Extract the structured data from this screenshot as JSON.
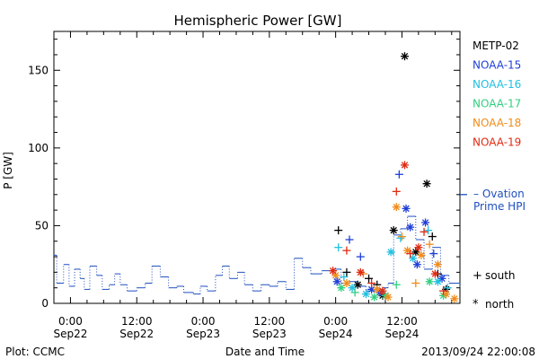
{
  "chart_data": {
    "type": "scatter",
    "title": "Hemispheric Power [GW]",
    "xlabel": "Date and Time",
    "ylabel": "P [GW]",
    "xlim": [
      "2013-09-21 21:00",
      "2013-09-24 22:30"
    ],
    "ylim": [
      0,
      175
    ],
    "yticks": [
      0,
      50,
      100,
      150
    ],
    "xticks": [
      {
        "t": "2013-09-22 00:00",
        "l1": "0:00",
        "l2": "Sep22"
      },
      {
        "t": "2013-09-22 12:00",
        "l1": "12:00",
        "l2": "Sep22"
      },
      {
        "t": "2013-09-23 00:00",
        "l1": "0:00",
        "l2": "Sep23"
      },
      {
        "t": "2013-09-23 12:00",
        "l1": "12:00",
        "l2": "Sep23"
      },
      {
        "t": "2013-09-24 00:00",
        "l1": "0:00",
        "l2": "Sep24"
      },
      {
        "t": "2013-09-24 12:00",
        "l1": "12:00",
        "l2": "Sep24"
      }
    ],
    "ovation": {
      "name": "Ovation Prime HPI",
      "label_lines": [
        "– Ovation",
        "Prime HPI"
      ],
      "color": "#1f4fbf",
      "points": [
        [
          "2013-09-21 21:00",
          31
        ],
        [
          "2013-09-21 21:30",
          13
        ],
        [
          "2013-09-21 22:45",
          25
        ],
        [
          "2013-09-21 23:45",
          11
        ],
        [
          "2013-09-22 00:45",
          22
        ],
        [
          "2013-09-22 01:45",
          16
        ],
        [
          "2013-09-22 02:30",
          9
        ],
        [
          "2013-09-22 03:30",
          24
        ],
        [
          "2013-09-22 04:45",
          18
        ],
        [
          "2013-09-22 05:45",
          9
        ],
        [
          "2013-09-22 07:00",
          12
        ],
        [
          "2013-09-22 08:00",
          19
        ],
        [
          "2013-09-22 09:00",
          12
        ],
        [
          "2013-09-22 10:15",
          8
        ],
        [
          "2013-09-22 12:00",
          10
        ],
        [
          "2013-09-22 13:30",
          13
        ],
        [
          "2013-09-22 14:45",
          24
        ],
        [
          "2013-09-22 16:15",
          17
        ],
        [
          "2013-09-22 17:45",
          10
        ],
        [
          "2013-09-22 19:15",
          11
        ],
        [
          "2013-09-22 20:30",
          7
        ],
        [
          "2013-09-22 22:15",
          6
        ],
        [
          "2013-09-22 23:30",
          11
        ],
        [
          "2013-09-23 00:45",
          8
        ],
        [
          "2013-09-23 02:15",
          18
        ],
        [
          "2013-09-23 03:30",
          24
        ],
        [
          "2013-09-23 04:45",
          16
        ],
        [
          "2013-09-23 06:15",
          20
        ],
        [
          "2013-09-23 07:30",
          12
        ],
        [
          "2013-09-23 09:00",
          8
        ],
        [
          "2013-09-23 10:30",
          12
        ],
        [
          "2013-09-23 12:00",
          11
        ],
        [
          "2013-09-23 13:30",
          14
        ],
        [
          "2013-09-23 15:00",
          9
        ],
        [
          "2013-09-23 16:30",
          29
        ],
        [
          "2013-09-23 18:00",
          23
        ],
        [
          "2013-09-23 19:30",
          19
        ],
        [
          "2013-09-23 21:30",
          21
        ],
        [
          "2013-09-23 23:30",
          22
        ],
        [
          "2013-09-24 01:00",
          13
        ],
        [
          "2013-09-24 02:30",
          14
        ],
        [
          "2013-09-24 04:00",
          11
        ],
        [
          "2013-09-24 05:30",
          8
        ],
        [
          "2013-09-24 07:00",
          9
        ],
        [
          "2013-09-24 08:30",
          10
        ],
        [
          "2013-09-24 09:30",
          13
        ],
        [
          "2013-09-24 10:30",
          44
        ],
        [
          "2013-09-24 11:45",
          48
        ],
        [
          "2013-09-24 13:00",
          56
        ],
        [
          "2013-09-24 14:30",
          41
        ],
        [
          "2013-09-24 16:00",
          22
        ],
        [
          "2013-09-24 17:30",
          36
        ],
        [
          "2013-09-24 19:00",
          18
        ],
        [
          "2013-09-24 20:30",
          13
        ],
        [
          "2013-09-24 22:30",
          10
        ]
      ]
    },
    "series": [
      {
        "name": "METP-02",
        "color": "#000000",
        "points": [
          [
            "2013-09-24 00:30",
            47,
            "s"
          ],
          [
            "2013-09-24 02:00",
            20,
            "s"
          ],
          [
            "2013-09-24 04:00",
            12,
            "n"
          ],
          [
            "2013-09-24 06:00",
            16,
            "s"
          ],
          [
            "2013-09-24 10:30",
            47,
            "n"
          ],
          [
            "2013-09-24 12:30",
            159,
            "n"
          ],
          [
            "2013-09-24 14:30",
            33,
            "n"
          ],
          [
            "2013-09-24 16:30",
            77,
            "n"
          ],
          [
            "2013-09-24 17:30",
            43,
            "s"
          ],
          [
            "2013-09-24 18:30",
            19,
            "s"
          ],
          [
            "2013-09-24 20:00",
            9,
            "n"
          ],
          [
            "2013-09-24 08:30",
            5,
            "n"
          ],
          [
            "2013-09-24 07:30",
            12,
            "s"
          ]
        ]
      },
      {
        "name": "NOAA-15",
        "color": "#1f3fd8",
        "points": [
          [
            "2013-09-24 02:30",
            41,
            "s"
          ],
          [
            "2013-09-24 04:30",
            30,
            "s"
          ],
          [
            "2013-09-24 11:30",
            83,
            "s"
          ],
          [
            "2013-09-24 12:45",
            61,
            "n"
          ],
          [
            "2013-09-24 13:30",
            49,
            "n"
          ],
          [
            "2013-09-24 16:15",
            52,
            "n"
          ],
          [
            "2013-09-24 17:45",
            32,
            "s"
          ],
          [
            "2013-09-24 19:15",
            16,
            "n"
          ],
          [
            "2013-09-24 06:30",
            9,
            "n"
          ],
          [
            "2013-09-24 08:00",
            7,
            "n"
          ],
          [
            "2013-09-24 14:45",
            25,
            "n"
          ],
          [
            "2013-09-24 00:15",
            14,
            "n"
          ]
        ]
      },
      {
        "name": "NOAA-16",
        "color": "#20c0e0",
        "points": [
          [
            "2013-09-24 00:30",
            36,
            "s"
          ],
          [
            "2013-09-24 01:30",
            17,
            "s"
          ],
          [
            "2013-09-24 03:00",
            10,
            "n"
          ],
          [
            "2013-09-24 05:30",
            6,
            "n"
          ],
          [
            "2013-09-24 10:00",
            33,
            "n"
          ],
          [
            "2013-09-24 11:45",
            42,
            "s"
          ],
          [
            "2013-09-24 14:00",
            29,
            "n"
          ],
          [
            "2013-09-24 16:45",
            47,
            "s"
          ],
          [
            "2013-09-24 18:30",
            14,
            "n"
          ],
          [
            "2013-09-24 20:15",
            10,
            "s"
          ]
        ]
      },
      {
        "name": "NOAA-17",
        "color": "#30d080",
        "points": [
          [
            "2013-09-24 01:00",
            10,
            "n"
          ],
          [
            "2013-09-24 03:30",
            7,
            "s"
          ],
          [
            "2013-09-24 07:00",
            4,
            "n"
          ],
          [
            "2013-09-24 09:00",
            5,
            "n"
          ],
          [
            "2013-09-24 11:00",
            12,
            "s"
          ],
          [
            "2013-09-24 17:00",
            14,
            "n"
          ],
          [
            "2013-09-24 19:30",
            5,
            "n"
          ]
        ]
      },
      {
        "name": "NOAA-18",
        "color": "#f08c1a",
        "points": [
          [
            "2013-09-24 00:00",
            18,
            "n"
          ],
          [
            "2013-09-24 02:00",
            13,
            "n"
          ],
          [
            "2013-09-24 05:00",
            19,
            "s"
          ],
          [
            "2013-09-24 07:30",
            9,
            "n"
          ],
          [
            "2013-09-24 09:30",
            4,
            "n"
          ],
          [
            "2013-09-24 11:00",
            62,
            "n"
          ],
          [
            "2013-09-24 12:00",
            43,
            "s"
          ],
          [
            "2013-09-24 13:00",
            34,
            "n"
          ],
          [
            "2013-09-24 14:30",
            13,
            "s"
          ],
          [
            "2013-09-24 15:30",
            31,
            "n"
          ],
          [
            "2013-09-24 17:00",
            38,
            "s"
          ],
          [
            "2013-09-24 18:30",
            25,
            "n"
          ],
          [
            "2013-09-24 20:00",
            6,
            "n"
          ],
          [
            "2013-09-24 21:30",
            3,
            "n"
          ]
        ]
      },
      {
        "name": "NOAA-19",
        "color": "#e02a12",
        "points": [
          [
            "2013-09-23 23:30",
            21,
            "n"
          ],
          [
            "2013-09-24 02:00",
            34,
            "s"
          ],
          [
            "2013-09-24 04:30",
            20,
            "n"
          ],
          [
            "2013-09-24 06:30",
            13,
            "s"
          ],
          [
            "2013-09-24 08:30",
            8,
            "n"
          ],
          [
            "2013-09-24 11:00",
            72,
            "s"
          ],
          [
            "2013-09-24 12:30",
            89,
            "n"
          ],
          [
            "2013-09-24 13:30",
            32,
            "s"
          ],
          [
            "2013-09-24 15:00",
            36,
            "n"
          ],
          [
            "2013-09-24 16:00",
            46,
            "s"
          ],
          [
            "2013-09-24 18:00",
            19,
            "n"
          ],
          [
            "2013-09-24 19:30",
            8,
            "s"
          ]
        ]
      }
    ],
    "symbols": [
      {
        "glyph": "+",
        "label": "south"
      },
      {
        "glyph": "*",
        "label": "north"
      }
    ]
  },
  "footer": {
    "left": "Plot: CCMC",
    "right": "2013/09/24 22:00:08"
  }
}
